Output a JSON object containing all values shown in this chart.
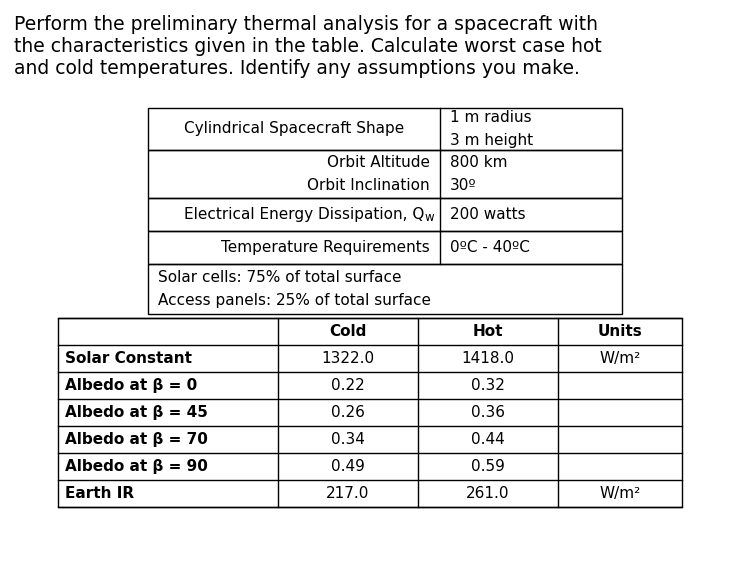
{
  "title_line1": "Perform the preliminary thermal analysis for a spacecraft with",
  "title_line2": "the characteristics given in the table. Calculate worst case hot",
  "title_line3": "and cold temperatures. Identify any assumptions you make.",
  "bg_color": "#ffffff",
  "text_color": "#000000",
  "title_fontsize": 13.5,
  "table_fontsize": 11,
  "lower_table_headers": [
    "",
    "Cold",
    "Hot",
    "Units"
  ],
  "lower_table_rows": [
    [
      "Solar Constant",
      "1322.0",
      "1418.0",
      "W/m²"
    ],
    [
      "Albedo at β = 0",
      "0.22",
      "0.32",
      ""
    ],
    [
      "Albedo at β = 45",
      "0.26",
      "0.36",
      ""
    ],
    [
      "Albedo at β = 70",
      "0.34",
      "0.44",
      ""
    ],
    [
      "Albedo at β = 90",
      "0.49",
      "0.59",
      ""
    ],
    [
      "Earth IR",
      "217.0",
      "261.0",
      "W/m²"
    ]
  ],
  "upper_row0_label": "Cylindrical Spacecraft Shape",
  "upper_row0_value": "1 m radius\n3 m height",
  "upper_row1_label": "Orbit Altitude\nOrbit Inclination",
  "upper_row1_value": "800 km\n30º",
  "upper_row2_label_main": "Electrical Energy Dissipation, Q",
  "upper_row2_label_sub": "w",
  "upper_row2_value": "200 watts",
  "upper_row3_label": "Temperature Requirements",
  "upper_row3_value": "0ºC - 40ºC",
  "upper_row4_label": "Solar cells: 75% of total surface\nAccess panels: 25% of total surface"
}
